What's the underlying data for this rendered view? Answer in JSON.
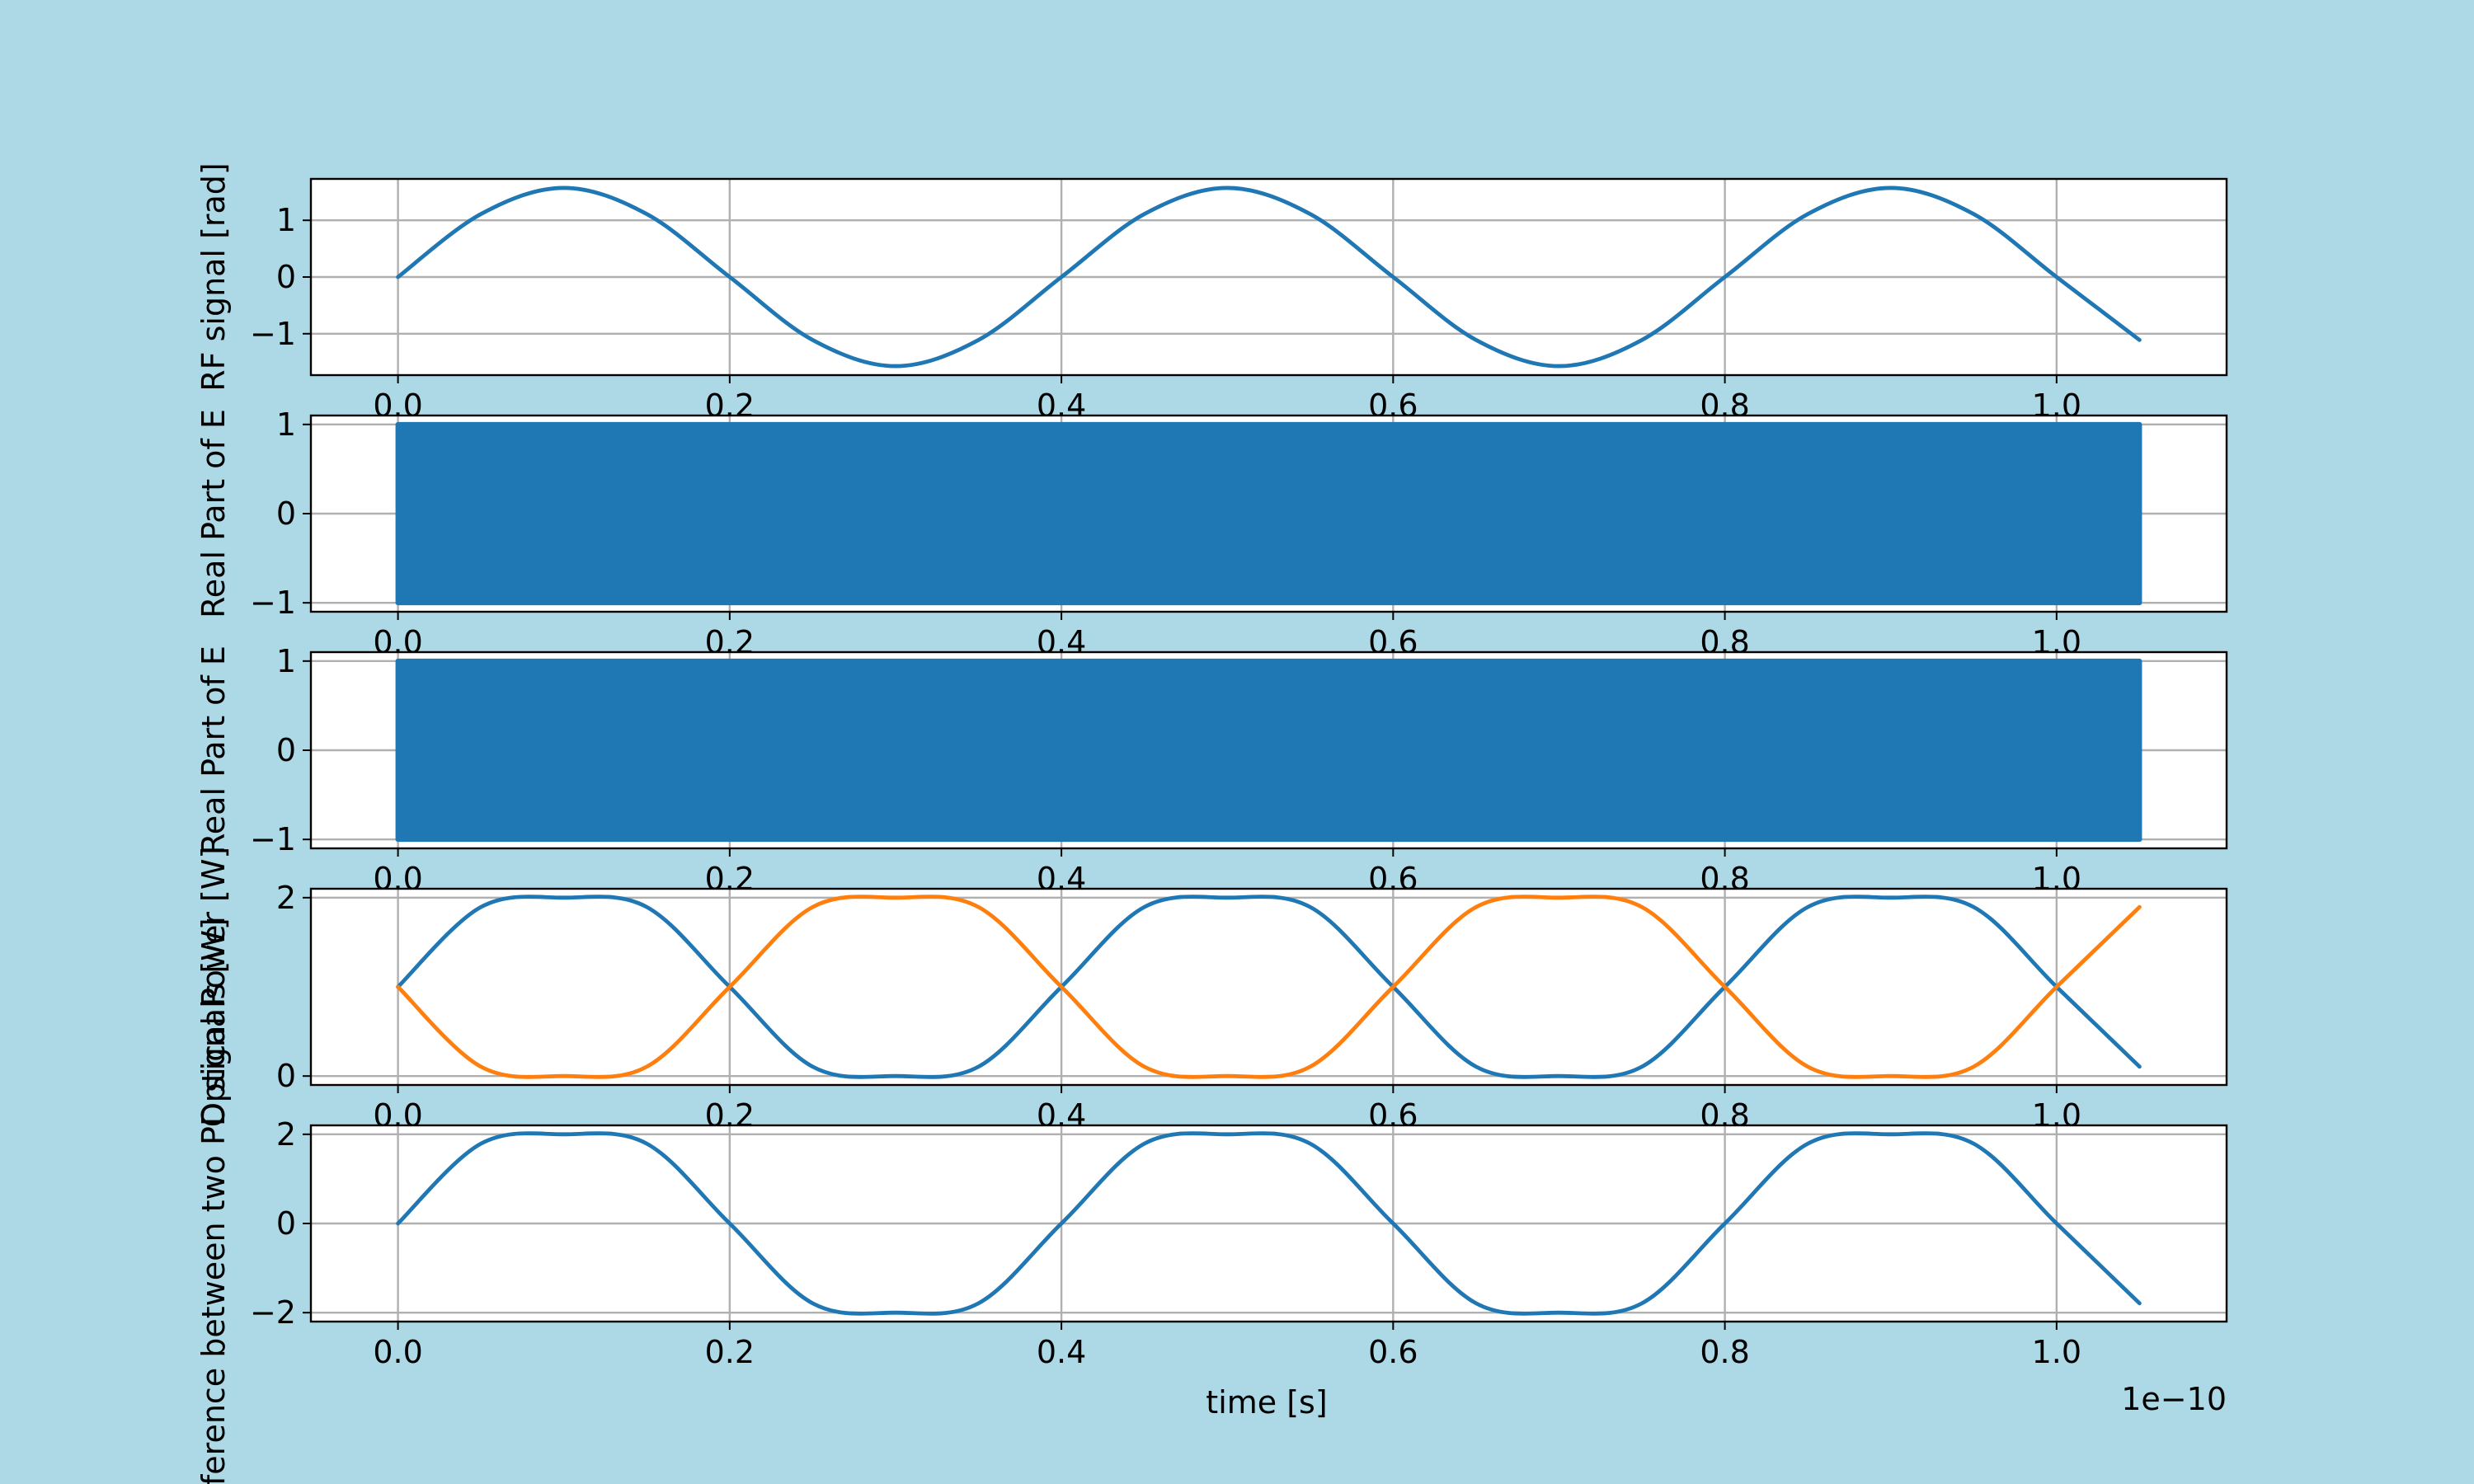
{
  "figure": {
    "background": "#add8e6",
    "axes_background": "#ffffff",
    "grid_color": "#b0b0b0"
  },
  "chart_data": [
    {
      "type": "line",
      "ylabel": "RF signal [rad]",
      "xlim": [
        -5.25e-12,
        1.1025e-10
      ],
      "ylim": [
        -1.73,
        1.73
      ],
      "yticks": [
        -1,
        0,
        1
      ],
      "ytick_labels": [
        "−1",
        "0",
        "1"
      ],
      "xticks": [
        0,
        2e-11,
        4e-11,
        6e-11,
        8e-11,
        1e-10
      ],
      "xtick_labels": [
        "0.0",
        "0.2",
        "0.4",
        "0.6",
        "0.8",
        "1.0"
      ],
      "grid": true,
      "series": [
        {
          "color": "#1f77b4",
          "x": [
            0,
            5e-12,
            1e-11,
            1.5e-11,
            2e-11,
            2.5e-11,
            3e-11,
            3.5e-11,
            4e-11,
            4.5e-11,
            5e-11,
            5.5e-11,
            6e-11,
            6.5e-11,
            7e-11,
            7.5e-11,
            8e-11,
            8.5e-11,
            9e-11,
            9.5e-11,
            1e-10,
            1.05e-10
          ],
          "y": [
            0,
            1.11,
            1.571,
            1.11,
            0,
            -1.11,
            -1.571,
            -1.11,
            0,
            1.11,
            1.571,
            1.11,
            0,
            -1.11,
            -1.571,
            -1.11,
            0,
            1.11,
            1.571,
            1.11,
            0,
            -1.11
          ]
        }
      ]
    },
    {
      "type": "area",
      "ylabel": "Real Part of E",
      "xlim": [
        -5.25e-12,
        1.1025e-10
      ],
      "ylim": [
        -1.1,
        1.1
      ],
      "yticks": [
        -1,
        0,
        1
      ],
      "ytick_labels": [
        "−1",
        "0",
        "1"
      ],
      "xticks": [
        0,
        2e-11,
        4e-11,
        6e-11,
        8e-11,
        1e-10
      ],
      "xtick_labels": [
        "0.0",
        "0.2",
        "0.4",
        "0.6",
        "0.8",
        "1.0"
      ],
      "grid": true,
      "series": [
        {
          "color": "#1f77b4",
          "description_kind": "dense-oscillation",
          "x": [
            0,
            1.05e-10
          ],
          "y_min": [
            -1,
            -1
          ],
          "y_max": [
            1,
            1
          ]
        }
      ]
    },
    {
      "type": "area",
      "ylabel": "Real Part of E",
      "xlim": [
        -5.25e-12,
        1.1025e-10
      ],
      "ylim": [
        -1.1,
        1.1
      ],
      "yticks": [
        -1,
        0,
        1
      ],
      "ytick_labels": [
        "−1",
        "0",
        "1"
      ],
      "xticks": [
        0,
        2e-11,
        4e-11,
        6e-11,
        8e-11,
        1e-10
      ],
      "xtick_labels": [
        "0.0",
        "0.2",
        "0.4",
        "0.6",
        "0.8",
        "1.0"
      ],
      "grid": true,
      "series": [
        {
          "color": "#1f77b4",
          "description_kind": "dense-oscillation",
          "x": [
            0,
            1.05e-10
          ],
          "y_min": [
            -1,
            -1
          ],
          "y_max": [
            1,
            1
          ]
        }
      ]
    },
    {
      "type": "line",
      "ylabel": "Optical Power [W]",
      "xlim": [
        -5.25e-12,
        1.1025e-10
      ],
      "ylim": [
        -0.1,
        2.1
      ],
      "yticks": [
        0,
        2
      ],
      "ytick_labels": [
        "0",
        "2"
      ],
      "xticks": [
        0,
        2e-11,
        4e-11,
        6e-11,
        8e-11,
        1e-10
      ],
      "xtick_labels": [
        "0.0",
        "0.2",
        "0.4",
        "0.6",
        "0.8",
        "1.0"
      ],
      "grid": true,
      "series": [
        {
          "color": "#1f77b4",
          "x": [
            0,
            5e-12,
            1e-11,
            1.5e-11,
            2e-11,
            2.5e-11,
            3e-11,
            3.5e-11,
            4e-11,
            4.5e-11,
            5e-11,
            5.5e-11,
            6e-11,
            6.5e-11,
            7e-11,
            7.5e-11,
            8e-11,
            8.5e-11,
            9e-11,
            9.5e-11,
            1e-10,
            1.05e-10
          ],
          "y": [
            1.0,
            1.895,
            2.0,
            1.895,
            1.0,
            0.105,
            0.0,
            0.105,
            1.0,
            1.895,
            2.0,
            1.895,
            1.0,
            0.105,
            0.0,
            0.105,
            1.0,
            1.895,
            2.0,
            1.895,
            1.0,
            0.105
          ]
        },
        {
          "color": "#ff7f0e",
          "x": [
            0,
            5e-12,
            1e-11,
            1.5e-11,
            2e-11,
            2.5e-11,
            3e-11,
            3.5e-11,
            4e-11,
            4.5e-11,
            5e-11,
            5.5e-11,
            6e-11,
            6.5e-11,
            7e-11,
            7.5e-11,
            8e-11,
            8.5e-11,
            9e-11,
            9.5e-11,
            1e-10,
            1.05e-10
          ],
          "y": [
            1.0,
            0.105,
            0.0,
            0.105,
            1.0,
            1.895,
            2.0,
            1.895,
            1.0,
            0.105,
            0.0,
            0.105,
            1.0,
            1.895,
            2.0,
            1.895,
            1.0,
            0.105,
            0.0,
            0.105,
            1.0,
            1.895
          ]
        }
      ]
    },
    {
      "type": "line",
      "ylabel": "Difference between two PD signals [W]",
      "xlabel": "time [s]",
      "x_offset_text": "1e−10",
      "xlim": [
        -5.25e-12,
        1.1025e-10
      ],
      "ylim": [
        -2.2,
        2.2
      ],
      "yticks": [
        -2,
        0,
        2
      ],
      "ytick_labels": [
        "−2",
        "0",
        "2"
      ],
      "xticks": [
        0,
        2e-11,
        4e-11,
        6e-11,
        8e-11,
        1e-10
      ],
      "xtick_labels": [
        "0.0",
        "0.2",
        "0.4",
        "0.6",
        "0.8",
        "1.0"
      ],
      "grid": true,
      "series": [
        {
          "color": "#1f77b4",
          "x": [
            0,
            5e-12,
            1e-11,
            1.5e-11,
            2e-11,
            2.5e-11,
            3e-11,
            3.5e-11,
            4e-11,
            4.5e-11,
            5e-11,
            5.5e-11,
            6e-11,
            6.5e-11,
            7e-11,
            7.5e-11,
            8e-11,
            8.5e-11,
            9e-11,
            9.5e-11,
            1e-10,
            1.05e-10
          ],
          "y": [
            0,
            1.79,
            2.0,
            1.79,
            0,
            -1.79,
            -2.0,
            -1.79,
            0,
            1.79,
            2.0,
            1.79,
            0,
            -1.79,
            -2.0,
            -1.79,
            0,
            1.79,
            2.0,
            1.79,
            0,
            -1.79
          ]
        }
      ]
    }
  ]
}
